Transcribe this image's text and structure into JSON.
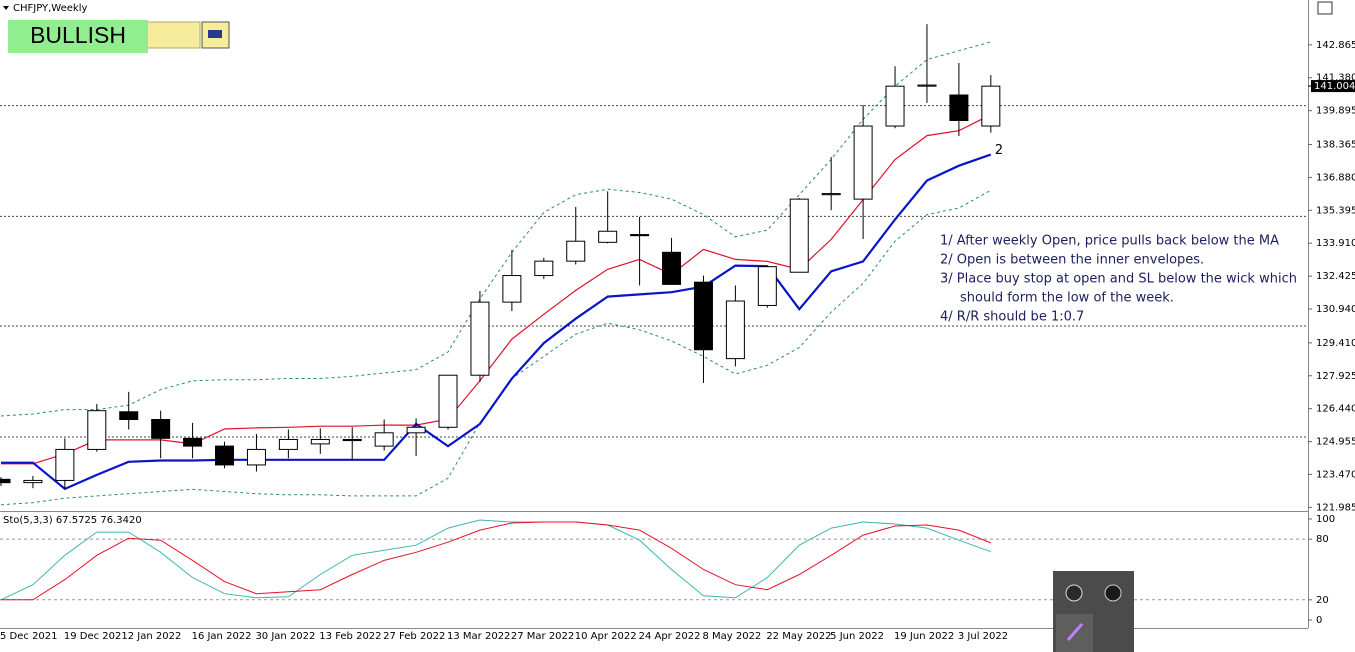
{
  "chart_data": [
    {
      "type": "candlestick",
      "title": "CHFJPY,Weekly",
      "badge": "BULLISH",
      "categories": [
        "5 Dec 2021",
        null,
        "19 Dec 2021",
        null,
        "2 Jan 2022",
        null,
        "16 Jan 2022",
        null,
        "30 Jan 2022",
        null,
        "13 Feb 2022",
        null,
        "27 Feb 2022",
        null,
        "13 Mar 2022",
        null,
        "27 Mar 2022",
        null,
        "10 Apr 2022",
        null,
        "24 Apr 2022",
        null,
        "8 May 2022",
        null,
        "22 May 2022",
        null,
        "5 Jun 2022",
        null,
        "19 Jun 2022",
        null,
        "3 Jul 2022",
        null
      ],
      "open": [
        123.25,
        123.1,
        123.2,
        124.6,
        126.3,
        125.95,
        125.1,
        124.75,
        123.9,
        124.6,
        124.85,
        125.05,
        124.75,
        125.35,
        125.6,
        127.95,
        131.25,
        132.45,
        133.1,
        133.95,
        134.3,
        133.5,
        132.15,
        128.7,
        131.1,
        132.6,
        136.1,
        135.9,
        139.2,
        141.0,
        140.6,
        139.2
      ],
      "high": [
        123.35,
        123.4,
        125.1,
        126.65,
        127.2,
        126.35,
        125.8,
        124.95,
        125.3,
        125.5,
        125.55,
        125.6,
        125.95,
        126.0,
        127.95,
        131.75,
        133.6,
        133.25,
        135.55,
        136.25,
        135.1,
        134.15,
        132.45,
        132.0,
        132.9,
        135.95,
        137.8,
        140.15,
        141.9,
        143.8,
        142.05,
        141.5
      ],
      "low": [
        122.95,
        122.85,
        122.8,
        124.5,
        125.5,
        124.2,
        124.2,
        123.75,
        123.6,
        124.2,
        124.4,
        124.1,
        124.55,
        124.3,
        125.5,
        127.65,
        130.85,
        132.3,
        132.95,
        133.9,
        132.0,
        132.05,
        127.6,
        128.35,
        131.0,
        132.6,
        135.4,
        134.1,
        139.1,
        140.25,
        138.75,
        138.9
      ],
      "close": [
        123.1,
        123.2,
        124.6,
        126.35,
        125.95,
        125.1,
        124.75,
        123.9,
        124.6,
        125.05,
        125.05,
        125.0,
        125.35,
        125.6,
        127.95,
        131.25,
        132.45,
        133.1,
        134.0,
        134.45,
        134.25,
        132.05,
        129.1,
        131.3,
        132.85,
        135.9,
        136.15,
        139.2,
        141.0,
        141.05,
        139.45,
        141.0
      ],
      "up_color": "#ffffff",
      "down_color": "#000000",
      "series": [
        {
          "color": "#2a8a80",
          "style": "dashed",
          "width": 1,
          "values": [
            126.11,
            126.2,
            126.4,
            126.4,
            126.6,
            127.3,
            127.7,
            127.75,
            127.75,
            127.8,
            127.8,
            127.9,
            128.05,
            128.2,
            129.0,
            131.4,
            133.5,
            135.3,
            136.1,
            136.35,
            136.2,
            135.9,
            135.2,
            134.2,
            134.5,
            136.1,
            137.7,
            139.5,
            141.0,
            142.2,
            142.6,
            143.0
          ]
        },
        {
          "color": "#2a8a80",
          "style": "dashed",
          "width": 1,
          "values": [
            122.1,
            122.2,
            122.4,
            122.5,
            122.6,
            122.7,
            122.8,
            122.7,
            122.6,
            122.55,
            122.55,
            122.5,
            122.5,
            122.5,
            123.3,
            125.8,
            127.8,
            128.8,
            129.8,
            130.3,
            130.0,
            129.5,
            128.8,
            128.0,
            128.4,
            129.2,
            130.8,
            132.1,
            134.0,
            135.2,
            135.5,
            136.3
          ]
        },
        {
          "color": "#e0102a",
          "style": "solid",
          "width": 1.2,
          "values": [
            123.95,
            123.95,
            124.4,
            125.03,
            125.03,
            125.03,
            124.85,
            125.52,
            125.57,
            125.6,
            125.65,
            125.65,
            125.7,
            125.7,
            125.97,
            127.7,
            129.58,
            130.7,
            131.78,
            132.73,
            133.18,
            132.5,
            133.63,
            133.18,
            133.09,
            132.73,
            134.08,
            135.88,
            137.69,
            138.77,
            138.99,
            139.71
          ]
        },
        {
          "color": "#0a14c8",
          "style": "solid",
          "width": 2.2,
          "values": [
            124.0,
            124.0,
            122.82,
            123.45,
            124.04,
            124.1,
            124.1,
            124.13,
            124.13,
            124.13,
            124.13,
            124.13,
            124.13,
            125.75,
            124.75,
            125.75,
            127.8,
            129.4,
            130.5,
            131.5,
            131.6,
            131.7,
            131.95,
            132.9,
            132.87,
            130.93,
            132.64,
            133.09,
            134.98,
            136.74,
            137.41,
            137.91
          ]
        }
      ],
      "levels": [
        140.12,
        135.12,
        130.17,
        125.16
      ],
      "last_price": 141.004,
      "marker_label": "2",
      "annotation_lines": [
        "1/ After weekly Open, price pulls back below the MA",
        "2/ Open is between the inner envelopes.",
        "3/ Place buy stop at open and SL below the wick which",
        "should form the low of the week.",
        "4/  R/R should be 1:0.7"
      ],
      "ylim": [
        121.82,
        144.89
      ],
      "yticks": [
        142.865,
        {
          "value": 141.38,
          "label": "141.380"
        },
        139.895,
        138.365,
        {
          "value": 136.88,
          "label": "136.880"
        },
        135.395,
        {
          "value": 133.91,
          "label": "133.910"
        },
        132.425,
        {
          "value": 130.94,
          "label": "130.940"
        },
        {
          "value": 129.41,
          "label": "129.410"
        },
        127.925,
        {
          "value": 126.44,
          "label": "126.440"
        },
        124.955,
        {
          "value": 123.47,
          "label": "123.470"
        },
        121.985
      ]
    },
    {
      "type": "line",
      "title": "Sto(5,3,3) 67.5725 76.3420",
      "series": [
        {
          "color": "#3cb8ad",
          "values": [
            20,
            35,
            64,
            87,
            87,
            67,
            42,
            26,
            22,
            23,
            45,
            64,
            69,
            74,
            91,
            99,
            97,
            97,
            97,
            94,
            79,
            50,
            24,
            22,
            42,
            74,
            91,
            97,
            95,
            91,
            79,
            67.5725
          ]
        },
        {
          "color": "#e8102a",
          "values": [
            20,
            20,
            40,
            64,
            81,
            79,
            59,
            38,
            26,
            28,
            30,
            45,
            59,
            67,
            77,
            89,
            96,
            97,
            97,
            94,
            89,
            71,
            50,
            35,
            30,
            45,
            64,
            84,
            93,
            94,
            89,
            76.342
          ]
        }
      ],
      "levels": [
        20,
        80
      ],
      "ylim": [
        -7.9,
        106.9
      ],
      "yticks": [
        0,
        20,
        80,
        100
      ]
    }
  ]
}
